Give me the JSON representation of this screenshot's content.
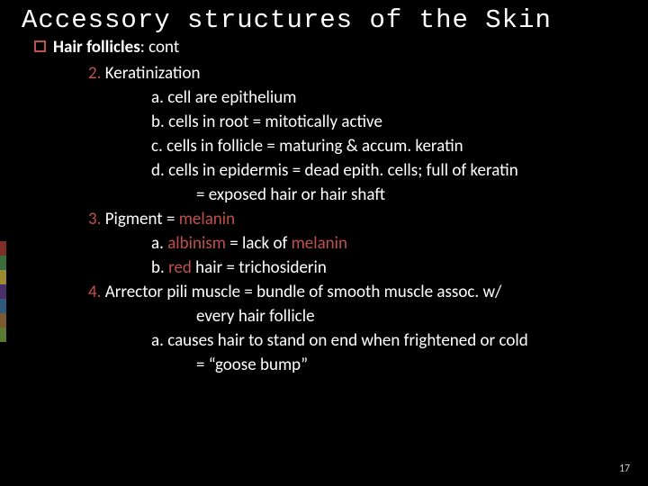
{
  "title": "Accessory structures of the Skin",
  "bullet": {
    "label_bold": "Hair follicles",
    "label_rest": ":   cont"
  },
  "items": {
    "i2": {
      "num": "2.",
      "text": " Keratinization"
    },
    "i2a": "a. cell are epithelium",
    "i2b": "b. cells in root = mitotically active",
    "i2c": "c. cells in follicle = maturing & accum. keratin",
    "i2d": "d. cells in epidermis = dead epith. cells; full of keratin",
    "i2d2": "= exposed hair or hair shaft",
    "i3": {
      "num": "3.",
      "pre": " Pigment = ",
      "kw": "melanin"
    },
    "i3a": {
      "pre": "a. ",
      "kw1": "albinism",
      "mid": " = lack of ",
      "kw2": "melanin"
    },
    "i3b": {
      "pre": "b. ",
      "kw": "red",
      "rest": " hair = trichosiderin"
    },
    "i4": {
      "num": "4.",
      "text": " Arrector pili muscle = bundle of smooth muscle assoc. w/"
    },
    "i4b": "every hair follicle",
    "i4a": "a. causes hair to stand on end when frightened or cold",
    "i4a2": "= “goose bump”"
  },
  "page_number": "17",
  "colors": {
    "bg": "#000000",
    "text": "#ffffff",
    "accent": "#c0504d",
    "stripes": [
      "#7b2d26",
      "#3a6b3a",
      "#9b8a2f",
      "#4a2f6b",
      "#2f5a7b",
      "#7b5a2f",
      "#5a7b2f"
    ]
  },
  "fonts": {
    "title_family": "Courier New",
    "body_family": "Calibri",
    "title_size_pt": 22,
    "body_size_pt": 14
  }
}
